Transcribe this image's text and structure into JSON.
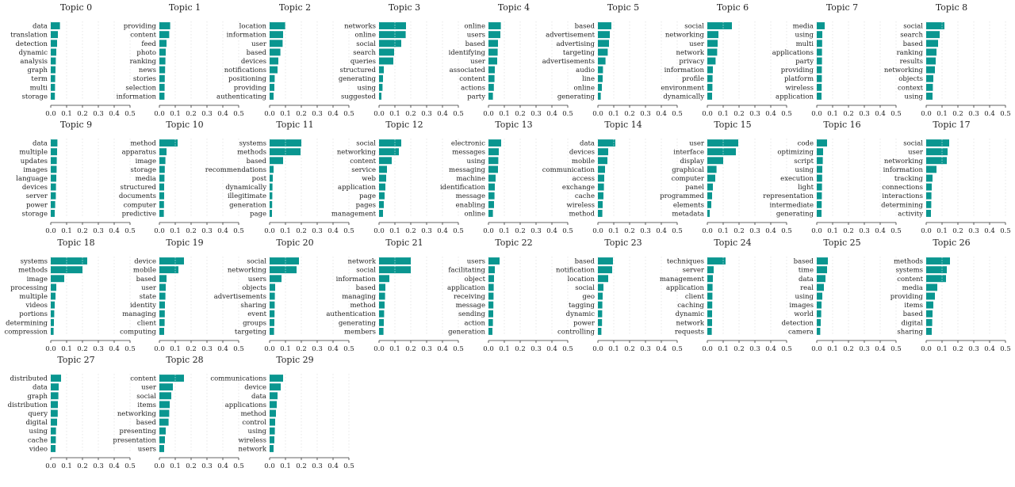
{
  "chart_data": {
    "type": "bar",
    "orientation": "horizontal",
    "xlim": [
      0,
      0.5
    ],
    "x_ticks": [
      "0.0",
      "0.1",
      "0.2",
      "0.3",
      "0.4",
      "0.5"
    ],
    "grid": "vertical dotted",
    "bar_color": "#0a9690",
    "panels": [
      {
        "title": "Topic 0",
        "words": [
          "data",
          "translation",
          "detection",
          "dynamic",
          "analysis",
          "graph",
          "term",
          "multi",
          "storage"
        ],
        "values": [
          0.058,
          0.045,
          0.04,
          0.035,
          0.032,
          0.03,
          0.028,
          0.027,
          0.026
        ]
      },
      {
        "title": "Topic 1",
        "words": [
          "providing",
          "content",
          "feed",
          "photo",
          "ranking",
          "news",
          "stories",
          "selection",
          "information"
        ],
        "values": [
          0.068,
          0.062,
          0.045,
          0.04,
          0.038,
          0.036,
          0.034,
          0.033,
          0.032
        ]
      },
      {
        "title": "Topic 2",
        "words": [
          "location",
          "information",
          "user",
          "based",
          "devices",
          "notifications",
          "positioning",
          "providing",
          "authenticating"
        ],
        "values": [
          0.098,
          0.085,
          0.082,
          0.068,
          0.055,
          0.05,
          0.032,
          0.03,
          0.025
        ]
      },
      {
        "title": "Topic 3",
        "words": [
          "networks",
          "online",
          "social",
          "search",
          "queries",
          "structured",
          "generating",
          "using",
          "suggested"
        ],
        "values": [
          0.17,
          0.168,
          0.14,
          0.095,
          0.09,
          0.03,
          0.025,
          0.022,
          0.015
        ]
      },
      {
        "title": "Topic 4",
        "words": [
          "online",
          "users",
          "based",
          "identifying",
          "user",
          "associated",
          "content",
          "actions",
          "party"
        ],
        "values": [
          0.078,
          0.075,
          0.06,
          0.058,
          0.055,
          0.04,
          0.038,
          0.034,
          0.028
        ]
      },
      {
        "title": "Topic 5",
        "words": [
          "based",
          "advertisement",
          "advertising",
          "targeting",
          "advertisements",
          "audio",
          "line",
          "online",
          "generating"
        ],
        "values": [
          0.085,
          0.075,
          0.07,
          0.062,
          0.048,
          0.032,
          0.03,
          0.025,
          0.018
        ]
      },
      {
        "title": "Topic 6",
        "words": [
          "social",
          "networking",
          "user",
          "network",
          "privacy",
          "information",
          "profile",
          "environment",
          "dynamically"
        ],
        "values": [
          0.155,
          0.07,
          0.065,
          0.062,
          0.052,
          0.035,
          0.033,
          0.032,
          0.03
        ]
      },
      {
        "title": "Topic 7",
        "words": [
          "media",
          "using",
          "multi",
          "applications",
          "party",
          "providing",
          "platform",
          "wireless",
          "application"
        ],
        "values": [
          0.05,
          0.035,
          0.034,
          0.033,
          0.033,
          0.032,
          0.032,
          0.031,
          0.03
        ]
      },
      {
        "title": "Topic 8",
        "words": [
          "social",
          "search",
          "based",
          "ranking",
          "results",
          "networking",
          "objects",
          "context",
          "using"
        ],
        "values": [
          0.115,
          0.085,
          0.075,
          0.065,
          0.06,
          0.055,
          0.045,
          0.042,
          0.04
        ]
      },
      {
        "title": "Topic 9",
        "words": [
          "data",
          "multiple",
          "updates",
          "images",
          "language",
          "devices",
          "server",
          "power",
          "storage"
        ],
        "values": [
          0.042,
          0.04,
          0.038,
          0.037,
          0.035,
          0.033,
          0.032,
          0.028,
          0.025
        ]
      },
      {
        "title": "Topic 10",
        "words": [
          "method",
          "apparatus",
          "image",
          "storage",
          "media",
          "structured",
          "documents",
          "computer",
          "predictive"
        ],
        "values": [
          0.115,
          0.045,
          0.038,
          0.034,
          0.032,
          0.03,
          0.03,
          0.029,
          0.028
        ]
      },
      {
        "title": "Topic 11",
        "words": [
          "systems",
          "methods",
          "based",
          "recommendations",
          "post",
          "dynamically",
          "illegitimate",
          "generation",
          "page"
        ],
        "values": [
          0.2,
          0.195,
          0.085,
          0.025,
          0.02,
          0.018,
          0.017,
          0.016,
          0.015
        ]
      },
      {
        "title": "Topic 12",
        "words": [
          "social",
          "networking",
          "content",
          "service",
          "web",
          "application",
          "page",
          "pages",
          "management"
        ],
        "values": [
          0.14,
          0.125,
          0.08,
          0.05,
          0.045,
          0.04,
          0.035,
          0.03,
          0.025
        ]
      },
      {
        "title": "Topic 13",
        "words": [
          "electronic",
          "messages",
          "using",
          "messaging",
          "machine",
          "identification",
          "message",
          "enabling",
          "online"
        ],
        "values": [
          0.08,
          0.065,
          0.062,
          0.06,
          0.045,
          0.04,
          0.038,
          0.035,
          0.028
        ]
      },
      {
        "title": "Topic 14",
        "words": [
          "data",
          "devices",
          "mobile",
          "communication",
          "access",
          "exchange",
          "cache",
          "wireless",
          "method"
        ],
        "values": [
          0.11,
          0.065,
          0.06,
          0.045,
          0.04,
          0.038,
          0.035,
          0.03,
          0.028
        ]
      },
      {
        "title": "Topic 15",
        "words": [
          "user",
          "interface",
          "display",
          "graphical",
          "computer",
          "panel",
          "programmed",
          "elements",
          "metadata"
        ],
        "values": [
          0.195,
          0.18,
          0.1,
          0.058,
          0.05,
          0.035,
          0.03,
          0.025,
          0.015
        ]
      },
      {
        "title": "Topic 16",
        "words": [
          "code",
          "optimizing",
          "script",
          "using",
          "execution",
          "light",
          "representation",
          "intermediate",
          "generating"
        ],
        "values": [
          0.065,
          0.04,
          0.038,
          0.035,
          0.034,
          0.033,
          0.032,
          0.031,
          0.03
        ]
      },
      {
        "title": "Topic 17",
        "words": [
          "social",
          "user",
          "networking",
          "information",
          "tracking",
          "connections",
          "interactions",
          "determining",
          "activity"
        ],
        "values": [
          0.145,
          0.135,
          0.13,
          0.065,
          0.04,
          0.035,
          0.033,
          0.032,
          0.03
        ]
      },
      {
        "title": "Topic 18",
        "words": [
          "systems",
          "methods",
          "image",
          "processing",
          "multiple",
          "videos",
          "portions",
          "determining",
          "compression"
        ],
        "values": [
          0.23,
          0.2,
          0.085,
          0.035,
          0.03,
          0.025,
          0.022,
          0.02,
          0.018
        ]
      },
      {
        "title": "Topic 19",
        "words": [
          "device",
          "mobile",
          "based",
          "user",
          "state",
          "identity",
          "managing",
          "client",
          "computing"
        ],
        "values": [
          0.155,
          0.12,
          0.045,
          0.04,
          0.038,
          0.035,
          0.034,
          0.033,
          0.03
        ]
      },
      {
        "title": "Topic 20",
        "words": [
          "social",
          "networking",
          "users",
          "objects",
          "advertisements",
          "sharing",
          "event",
          "groups",
          "targeting"
        ],
        "values": [
          0.185,
          0.17,
          0.075,
          0.035,
          0.033,
          0.032,
          0.031,
          0.03,
          0.028
        ]
      },
      {
        "title": "Topic 21",
        "words": [
          "network",
          "social",
          "information",
          "based",
          "managing",
          "method",
          "authentication",
          "generating",
          "members"
        ],
        "values": [
          0.2,
          0.2,
          0.065,
          0.04,
          0.038,
          0.035,
          0.032,
          0.03,
          0.028
        ]
      },
      {
        "title": "Topic 22",
        "words": [
          "users",
          "facilitating",
          "object",
          "application",
          "receiving",
          "message",
          "sending",
          "action",
          "generation"
        ],
        "values": [
          0.07,
          0.04,
          0.035,
          0.033,
          0.032,
          0.031,
          0.03,
          0.028,
          0.025
        ]
      },
      {
        "title": "Topic 23",
        "words": [
          "based",
          "notification",
          "location",
          "social",
          "geo",
          "tagging",
          "dynamic",
          "power",
          "controlling"
        ],
        "values": [
          0.095,
          0.09,
          0.065,
          0.035,
          0.03,
          0.028,
          0.027,
          0.026,
          0.022
        ]
      },
      {
        "title": "Topic 24",
        "words": [
          "techniques",
          "server",
          "management",
          "application",
          "client",
          "caching",
          "dynamic",
          "network",
          "requests"
        ],
        "values": [
          0.115,
          0.04,
          0.035,
          0.033,
          0.032,
          0.031,
          0.03,
          0.03,
          0.028
        ]
      },
      {
        "title": "Topic 25",
        "words": [
          "based",
          "time",
          "data",
          "real",
          "using",
          "images",
          "world",
          "detection",
          "camera"
        ],
        "values": [
          0.07,
          0.065,
          0.055,
          0.045,
          0.035,
          0.03,
          0.028,
          0.025,
          0.022
        ]
      },
      {
        "title": "Topic 26",
        "words": [
          "methods",
          "systems",
          "content",
          "media",
          "providing",
          "items",
          "based",
          "digital",
          "sharing"
        ],
        "values": [
          0.15,
          0.13,
          0.125,
          0.07,
          0.055,
          0.045,
          0.04,
          0.038,
          0.035
        ]
      },
      {
        "title": "Topic 27",
        "words": [
          "distributed",
          "data",
          "graph",
          "distribution",
          "query",
          "digital",
          "using",
          "cache",
          "video"
        ],
        "values": [
          0.065,
          0.05,
          0.048,
          0.045,
          0.044,
          0.04,
          0.033,
          0.032,
          0.03
        ]
      },
      {
        "title": "Topic 28",
        "words": [
          "content",
          "user",
          "social",
          "items",
          "networking",
          "based",
          "presenting",
          "presentation",
          "users"
        ],
        "values": [
          0.155,
          0.085,
          0.075,
          0.065,
          0.062,
          0.058,
          0.04,
          0.035,
          0.03
        ]
      },
      {
        "title": "Topic 29",
        "words": [
          "communications",
          "device",
          "data",
          "applications",
          "method",
          "control",
          "using",
          "wireless",
          "network"
        ],
        "values": [
          0.085,
          0.07,
          0.05,
          0.045,
          0.04,
          0.035,
          0.033,
          0.03,
          0.025
        ]
      }
    ]
  }
}
